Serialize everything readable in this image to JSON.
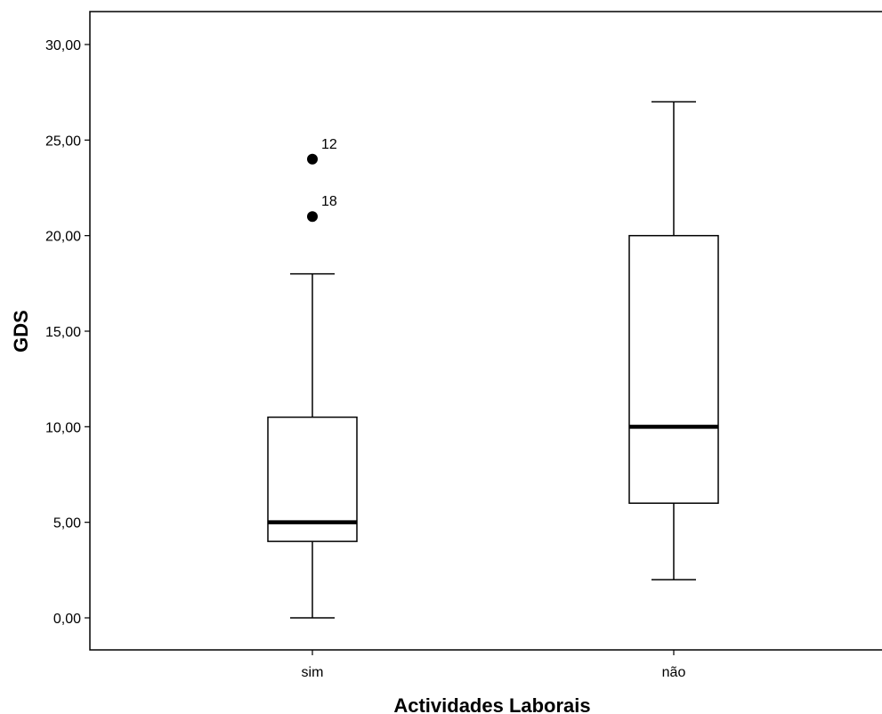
{
  "chart_data": {
    "type": "boxplot",
    "xlabel": "Actividades Laborais",
    "ylabel": "GDS",
    "ylim": [
      0,
      30
    ],
    "yticks": [
      0,
      5,
      10,
      15,
      20,
      25,
      30
    ],
    "ytick_labels": [
      "0,00",
      "5,00",
      "10,00",
      "15,00",
      "20,00",
      "25,00",
      "30,00"
    ],
    "grid": false,
    "categories": [
      "sim",
      "não"
    ],
    "boxes": [
      {
        "category": "sim",
        "whisker_low": 0,
        "q1": 4,
        "median": 5,
        "q3": 10.5,
        "whisker_high": 18,
        "outliers": [
          {
            "value": 24,
            "label": "12"
          },
          {
            "value": 21,
            "label": "18"
          }
        ]
      },
      {
        "category": "não",
        "whisker_low": 2,
        "q1": 6,
        "median": 10,
        "q3": 20,
        "whisker_high": 27,
        "outliers": []
      }
    ]
  }
}
